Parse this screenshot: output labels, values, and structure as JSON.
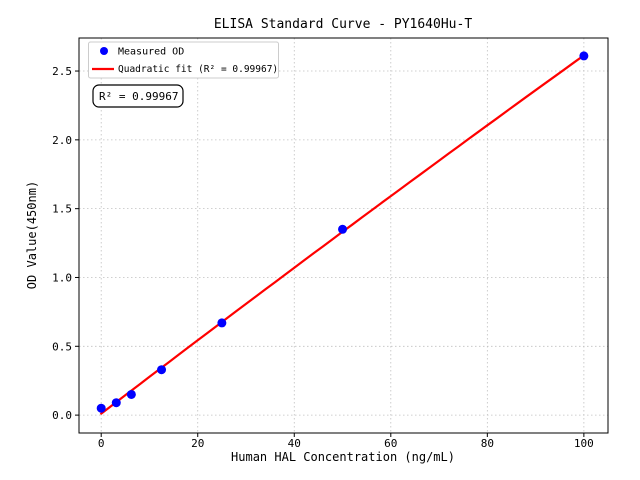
{
  "chart_data": {
    "type": "scatter",
    "title": "ELISA Standard Curve - PY1640Hu-T",
    "xlabel": "Human HAL Concentration (ng/mL)",
    "ylabel": "OD Value(450nm)",
    "annotation": "R² = 0.99967",
    "x": [
      0,
      3.125,
      6.25,
      12.5,
      25,
      50,
      100
    ],
    "series": [
      {
        "name": "Measured OD",
        "type": "scatter",
        "color": "#0000ff",
        "values": [
          0.05,
          0.09,
          0.15,
          0.33,
          0.67,
          1.35,
          2.61
        ]
      },
      {
        "name": "Quadratic fit (R² = 0.99967)",
        "type": "line",
        "color": "#ff0000",
        "fit": "quadratic",
        "r_squared": 0.99967
      }
    ],
    "x_ticks": [
      0,
      20,
      40,
      60,
      80,
      100
    ],
    "y_ticks": [
      0.0,
      0.5,
      1.0,
      1.5,
      2.0,
      2.5
    ],
    "xlim": [
      -4.6,
      105
    ],
    "ylim": [
      -0.13,
      2.74
    ],
    "grid": true,
    "grid_color": "#c0c0c0",
    "spine_color": "#000000",
    "legend_position": "upper-left"
  }
}
